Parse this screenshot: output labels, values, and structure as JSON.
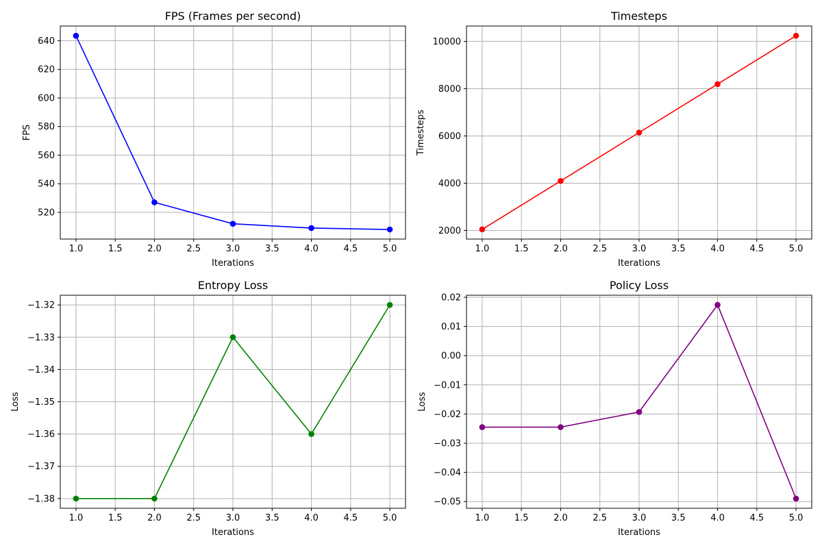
{
  "chart_data": [
    {
      "type": "line",
      "title": "FPS (Frames per second)",
      "xlabel": "Iterations",
      "ylabel": "FPS",
      "x": [
        1,
        2,
        3,
        4,
        5
      ],
      "series": [
        {
          "values": [
            643.5,
            527,
            512,
            509,
            508
          ],
          "color": "#0000ff"
        }
      ],
      "xticks": [
        1.0,
        1.5,
        2.0,
        2.5,
        3.0,
        3.5,
        4.0,
        4.5,
        5.0
      ],
      "xtick_labels": [
        "1.0",
        "1.5",
        "2.0",
        "2.5",
        "3.0",
        "3.5",
        "4.0",
        "4.5",
        "5.0"
      ],
      "yticks": [
        520,
        540,
        560,
        580,
        600,
        620,
        640
      ],
      "ytick_labels": [
        "520",
        "540",
        "560",
        "580",
        "600",
        "620",
        "640"
      ],
      "xlim": [
        0.8,
        5.2
      ],
      "ylim": [
        501.3,
        650.3
      ],
      "grid": true,
      "marker": "circle"
    },
    {
      "type": "line",
      "title": "Timesteps",
      "xlabel": "Iterations",
      "ylabel": "Timesteps",
      "x": [
        1,
        2,
        3,
        4,
        5
      ],
      "series": [
        {
          "values": [
            2048,
            4096,
            6144,
            8192,
            10240
          ],
          "color": "#ff0000"
        }
      ],
      "xticks": [
        1.0,
        1.5,
        2.0,
        2.5,
        3.0,
        3.5,
        4.0,
        4.5,
        5.0
      ],
      "xtick_labels": [
        "1.0",
        "1.5",
        "2.0",
        "2.5",
        "3.0",
        "3.5",
        "4.0",
        "4.5",
        "5.0"
      ],
      "yticks": [
        2000,
        4000,
        6000,
        8000,
        10000
      ],
      "ytick_labels": [
        "2000",
        "4000",
        "6000",
        "8000",
        "10000"
      ],
      "xlim": [
        0.8,
        5.2
      ],
      "ylim": [
        1638,
        10650
      ],
      "grid": true,
      "marker": "circle"
    },
    {
      "type": "line",
      "title": "Entropy Loss",
      "xlabel": "Iterations",
      "ylabel": "Loss",
      "x": [
        1,
        2,
        3,
        4,
        5
      ],
      "series": [
        {
          "values": [
            -1.38,
            -1.38,
            -1.33,
            -1.36,
            -1.32
          ],
          "color": "#008000"
        }
      ],
      "xticks": [
        1.0,
        1.5,
        2.0,
        2.5,
        3.0,
        3.5,
        4.0,
        4.5,
        5.0
      ],
      "xtick_labels": [
        "1.0",
        "1.5",
        "2.0",
        "2.5",
        "3.0",
        "3.5",
        "4.0",
        "4.5",
        "5.0"
      ],
      "yticks": [
        -1.38,
        -1.37,
        -1.36,
        -1.35,
        -1.34,
        -1.33,
        -1.32
      ],
      "ytick_labels": [
        "−1.38",
        "−1.37",
        "−1.36",
        "−1.35",
        "−1.34",
        "−1.33",
        "−1.32"
      ],
      "xlim": [
        0.8,
        5.2
      ],
      "ylim": [
        -1.383,
        -1.317
      ],
      "grid": true,
      "marker": "circle"
    },
    {
      "type": "line",
      "title": "Policy Loss",
      "xlabel": "Iterations",
      "ylabel": "Loss",
      "x": [
        1,
        2,
        3,
        4,
        5
      ],
      "series": [
        {
          "values": [
            -0.0245,
            -0.0245,
            -0.0193,
            0.0174,
            -0.049
          ],
          "color": "#800080"
        }
      ],
      "xticks": [
        1.0,
        1.5,
        2.0,
        2.5,
        3.0,
        3.5,
        4.0,
        4.5,
        5.0
      ],
      "xtick_labels": [
        "1.0",
        "1.5",
        "2.0",
        "2.5",
        "3.0",
        "3.5",
        "4.0",
        "4.5",
        "5.0"
      ],
      "yticks": [
        -0.05,
        -0.04,
        -0.03,
        -0.02,
        -0.01,
        0.0,
        0.01,
        0.02
      ],
      "ytick_labels": [
        "−0.05",
        "−0.04",
        "−0.03",
        "−0.02",
        "−0.01",
        "0.00",
        "0.01",
        "0.02"
      ],
      "xlim": [
        0.8,
        5.2
      ],
      "ylim": [
        -0.0523,
        0.0207
      ],
      "grid": true,
      "marker": "circle"
    }
  ]
}
